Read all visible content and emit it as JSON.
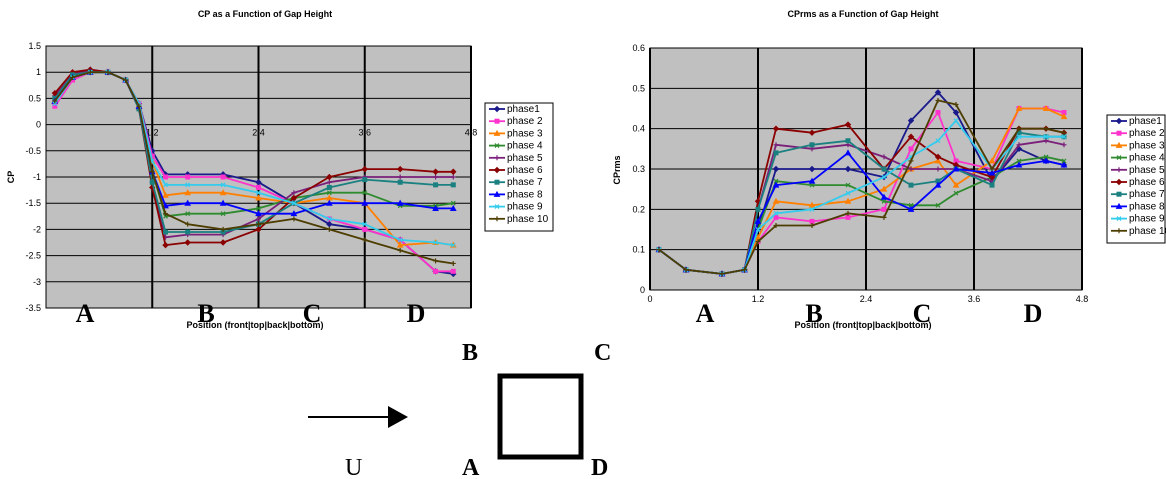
{
  "phase_colors": [
    "#1a1a8c",
    "#ff33cc",
    "#ff8000",
    "#2e8b2e",
    "#7a1f7a",
    "#8b0000",
    "#1a8080",
    "#0000ff",
    "#33ccee",
    "#4d3d00"
  ],
  "region_letters": [
    "A",
    "B",
    "C",
    "D"
  ],
  "chart_data": [
    {
      "type": "line",
      "title": "CP as a Function of Gap Height",
      "xlabel": "Position (front|top|back|bottom)",
      "ylabel": "CP",
      "xlim": [
        0,
        4.8
      ],
      "ylim": [
        -3.5,
        1.5
      ],
      "xticks": [
        "1.2",
        "2.4",
        "3.6",
        "4.8"
      ],
      "yticks": [
        "1.5",
        "1",
        "0.5",
        "0",
        "-0.5",
        "-1",
        "-1.5",
        "-2",
        "-2.5",
        "-3",
        "-3.5"
      ],
      "legend": "right",
      "grid": true,
      "series": [
        {
          "name": "phase1",
          "x": [
            0.1,
            0.3,
            0.5,
            0.7,
            0.9,
            1.05,
            1.2,
            1.35,
            1.6,
            2.0,
            2.4,
            2.8,
            3.2,
            3.6,
            4.0,
            4.4,
            4.6
          ],
          "y": [
            0.4,
            0.9,
            1.0,
            1.0,
            0.85,
            0.4,
            -0.5,
            -0.95,
            -0.95,
            -0.95,
            -1.1,
            -1.5,
            -1.9,
            -2.0,
            -2.2,
            -2.8,
            -2.85
          ]
        },
        {
          "name": "phase 2",
          "x": [
            0.1,
            0.3,
            0.5,
            0.7,
            0.9,
            1.05,
            1.2,
            1.35,
            1.6,
            2.0,
            2.4,
            2.8,
            3.2,
            3.6,
            4.0,
            4.4,
            4.6
          ],
          "y": [
            0.35,
            0.85,
            1.0,
            1.0,
            0.85,
            0.4,
            -0.6,
            -1.0,
            -1.0,
            -1.0,
            -1.2,
            -1.5,
            -1.8,
            -2.0,
            -2.2,
            -2.8,
            -2.8
          ]
        },
        {
          "name": "phase 3",
          "x": [
            0.1,
            0.3,
            0.5,
            0.7,
            0.9,
            1.05,
            1.2,
            1.35,
            1.6,
            2.0,
            2.4,
            2.8,
            3.2,
            3.6,
            4.0,
            4.4,
            4.6
          ],
          "y": [
            0.45,
            0.9,
            1.0,
            1.0,
            0.85,
            0.35,
            -0.7,
            -1.35,
            -1.3,
            -1.3,
            -1.4,
            -1.5,
            -1.4,
            -1.5,
            -2.3,
            -2.25,
            -2.3
          ]
        },
        {
          "name": "phase 4",
          "x": [
            0.1,
            0.3,
            0.5,
            0.7,
            0.9,
            1.05,
            1.2,
            1.35,
            1.6,
            2.0,
            2.4,
            2.8,
            3.2,
            3.6,
            4.0,
            4.4,
            4.6
          ],
          "y": [
            0.5,
            0.9,
            1.0,
            1.0,
            0.85,
            0.35,
            -0.9,
            -1.75,
            -1.7,
            -1.7,
            -1.6,
            -1.4,
            -1.3,
            -1.3,
            -1.55,
            -1.55,
            -1.5
          ]
        },
        {
          "name": "phase 5",
          "x": [
            0.1,
            0.3,
            0.5,
            0.7,
            0.9,
            1.05,
            1.2,
            1.35,
            1.6,
            2.0,
            2.4,
            2.8,
            3.2,
            3.6,
            4.0,
            4.4,
            4.6
          ],
          "y": [
            0.55,
            0.95,
            1.05,
            1.0,
            0.85,
            0.3,
            -1.1,
            -2.15,
            -2.1,
            -2.1,
            -1.8,
            -1.3,
            -1.1,
            -1.0,
            -1.0,
            -1.0,
            -1.0
          ]
        },
        {
          "name": "phase 6",
          "x": [
            0.1,
            0.3,
            0.5,
            0.7,
            0.9,
            1.05,
            1.2,
            1.35,
            1.6,
            2.0,
            2.4,
            2.8,
            3.2,
            3.6,
            4.0,
            4.4,
            4.6
          ],
          "y": [
            0.6,
            1.0,
            1.05,
            1.0,
            0.85,
            0.3,
            -1.2,
            -2.3,
            -2.25,
            -2.25,
            -2.0,
            -1.4,
            -1.0,
            -0.85,
            -0.85,
            -0.9,
            -0.9
          ]
        },
        {
          "name": "phase 7",
          "x": [
            0.1,
            0.3,
            0.5,
            0.7,
            0.9,
            1.05,
            1.2,
            1.35,
            1.6,
            2.0,
            2.4,
            2.8,
            3.2,
            3.6,
            4.0,
            4.4,
            4.6
          ],
          "y": [
            0.5,
            0.95,
            1.0,
            1.0,
            0.85,
            0.3,
            -1.1,
            -2.05,
            -2.05,
            -2.05,
            -1.9,
            -1.5,
            -1.2,
            -1.05,
            -1.1,
            -1.15,
            -1.15
          ]
        },
        {
          "name": "phase 8",
          "x": [
            0.1,
            0.3,
            0.5,
            0.7,
            0.9,
            1.05,
            1.2,
            1.35,
            1.6,
            2.0,
            2.4,
            2.8,
            3.2,
            3.6,
            4.0,
            4.4,
            4.6
          ],
          "y": [
            0.45,
            0.9,
            1.0,
            1.0,
            0.85,
            0.35,
            -0.9,
            -1.55,
            -1.5,
            -1.5,
            -1.7,
            -1.7,
            -1.5,
            -1.5,
            -1.5,
            -1.6,
            -1.6
          ]
        },
        {
          "name": "phase 9",
          "x": [
            0.1,
            0.3,
            0.5,
            0.7,
            0.9,
            1.05,
            1.2,
            1.35,
            1.6,
            2.0,
            2.4,
            2.8,
            3.2,
            3.6,
            4.0,
            4.4,
            4.6
          ],
          "y": [
            0.4,
            0.9,
            1.0,
            1.0,
            0.85,
            0.4,
            -0.7,
            -1.15,
            -1.15,
            -1.15,
            -1.3,
            -1.5,
            -1.8,
            -1.9,
            -2.2,
            -2.25,
            -2.3
          ]
        },
        {
          "name": "phase 10",
          "x": [
            0.1,
            0.3,
            0.5,
            0.7,
            0.9,
            1.05,
            1.2,
            1.35,
            1.6,
            2.0,
            2.4,
            2.8,
            3.2,
            3.6,
            4.0,
            4.4,
            4.6
          ],
          "y": [
            0.45,
            0.9,
            1.0,
            1.0,
            0.85,
            0.35,
            -0.9,
            -1.7,
            -1.9,
            -2.0,
            -1.9,
            -1.8,
            -2.0,
            -2.2,
            -2.4,
            -2.6,
            -2.65
          ]
        }
      ]
    },
    {
      "type": "line",
      "title": "CPrms as a Function of Gap Height",
      "xlabel": "Position (front|top|back|bottom)",
      "ylabel": "CPrms",
      "xlim": [
        0,
        4.8
      ],
      "ylim": [
        0,
        0.6
      ],
      "xticks": [
        "0",
        "1.2",
        "2.4",
        "3.6",
        "4.8"
      ],
      "yticks": [
        "0.6",
        "0.5",
        "0.4",
        "0.3",
        "0.2",
        "0.1",
        "0"
      ],
      "legend": "right",
      "grid": true,
      "series": [
        {
          "name": "phase1",
          "x": [
            0.1,
            0.4,
            0.8,
            1.05,
            1.2,
            1.4,
            1.8,
            2.2,
            2.6,
            2.9,
            3.2,
            3.4,
            3.8,
            4.1,
            4.4,
            4.6
          ],
          "y": [
            0.1,
            0.05,
            0.04,
            0.05,
            0.15,
            0.3,
            0.3,
            0.3,
            0.28,
            0.42,
            0.49,
            0.44,
            0.27,
            0.35,
            0.32,
            0.31
          ]
        },
        {
          "name": "phase 2",
          "x": [
            0.1,
            0.4,
            0.8,
            1.05,
            1.2,
            1.4,
            1.8,
            2.2,
            2.6,
            2.9,
            3.2,
            3.4,
            3.8,
            4.1,
            4.4,
            4.6
          ],
          "y": [
            0.1,
            0.05,
            0.04,
            0.05,
            0.12,
            0.18,
            0.17,
            0.18,
            0.2,
            0.35,
            0.44,
            0.32,
            0.3,
            0.45,
            0.45,
            0.44
          ]
        },
        {
          "name": "phase 3",
          "x": [
            0.1,
            0.4,
            0.8,
            1.05,
            1.2,
            1.4,
            1.8,
            2.2,
            2.6,
            2.9,
            3.2,
            3.4,
            3.8,
            4.1,
            4.4,
            4.6
          ],
          "y": [
            0.1,
            0.05,
            0.04,
            0.05,
            0.13,
            0.22,
            0.21,
            0.22,
            0.25,
            0.3,
            0.32,
            0.26,
            0.32,
            0.45,
            0.45,
            0.43
          ]
        },
        {
          "name": "phase 4",
          "x": [
            0.1,
            0.4,
            0.8,
            1.05,
            1.2,
            1.4,
            1.8,
            2.2,
            2.6,
            2.9,
            3.2,
            3.4,
            3.8,
            4.1,
            4.4,
            4.6
          ],
          "y": [
            0.1,
            0.05,
            0.04,
            0.05,
            0.15,
            0.27,
            0.26,
            0.26,
            0.22,
            0.21,
            0.21,
            0.24,
            0.28,
            0.32,
            0.33,
            0.32
          ]
        },
        {
          "name": "phase 5",
          "x": [
            0.1,
            0.4,
            0.8,
            1.05,
            1.2,
            1.4,
            1.8,
            2.2,
            2.6,
            2.9,
            3.2,
            3.4,
            3.8,
            4.1,
            4.4,
            4.6
          ],
          "y": [
            0.1,
            0.05,
            0.04,
            0.05,
            0.2,
            0.36,
            0.35,
            0.36,
            0.33,
            0.3,
            0.3,
            0.3,
            0.27,
            0.36,
            0.37,
            0.36
          ]
        },
        {
          "name": "phase 6",
          "x": [
            0.1,
            0.4,
            0.8,
            1.05,
            1.2,
            1.4,
            1.8,
            2.2,
            2.6,
            2.9,
            3.2,
            3.4,
            3.8,
            4.1,
            4.4,
            4.6
          ],
          "y": [
            0.1,
            0.05,
            0.04,
            0.05,
            0.22,
            0.4,
            0.39,
            0.41,
            0.3,
            0.38,
            0.33,
            0.31,
            0.28,
            0.4,
            0.4,
            0.39
          ]
        },
        {
          "name": "phase 7",
          "x": [
            0.1,
            0.4,
            0.8,
            1.05,
            1.2,
            1.4,
            1.8,
            2.2,
            2.6,
            2.9,
            3.2,
            3.4,
            3.8,
            4.1,
            4.4,
            4.6
          ],
          "y": [
            0.1,
            0.05,
            0.04,
            0.05,
            0.2,
            0.34,
            0.36,
            0.37,
            0.3,
            0.26,
            0.27,
            0.3,
            0.26,
            0.39,
            0.38,
            0.38
          ]
        },
        {
          "name": "phase 8",
          "x": [
            0.1,
            0.4,
            0.8,
            1.05,
            1.2,
            1.4,
            1.8,
            2.2,
            2.6,
            2.9,
            3.2,
            3.4,
            3.8,
            4.1,
            4.4,
            4.6
          ],
          "y": [
            0.1,
            0.05,
            0.04,
            0.05,
            0.17,
            0.26,
            0.27,
            0.34,
            0.23,
            0.2,
            0.26,
            0.3,
            0.29,
            0.31,
            0.32,
            0.31
          ]
        },
        {
          "name": "phase 9",
          "x": [
            0.1,
            0.4,
            0.8,
            1.05,
            1.2,
            1.4,
            1.8,
            2.2,
            2.6,
            2.9,
            3.2,
            3.4,
            3.8,
            4.1,
            4.4,
            4.6
          ],
          "y": [
            0.1,
            0.05,
            0.04,
            0.05,
            0.15,
            0.19,
            0.2,
            0.24,
            0.28,
            0.33,
            0.37,
            0.42,
            0.3,
            0.38,
            0.38,
            0.38
          ]
        },
        {
          "name": "phase 10",
          "x": [
            0.1,
            0.4,
            0.8,
            1.05,
            1.2,
            1.4,
            1.8,
            2.2,
            2.6,
            2.9,
            3.2,
            3.4,
            3.8,
            4.1,
            4.4,
            4.6
          ],
          "y": [
            0.1,
            0.05,
            0.04,
            0.05,
            0.12,
            0.16,
            0.16,
            0.19,
            0.18,
            0.32,
            0.47,
            0.46,
            0.3,
            0.4,
            0.4,
            0.39
          ]
        }
      ]
    }
  ],
  "diagram": {
    "flow_label": "U",
    "corner_labels": {
      "top_left": "B",
      "top_right": "C",
      "bottom_left": "A",
      "bottom_right": "D"
    }
  }
}
